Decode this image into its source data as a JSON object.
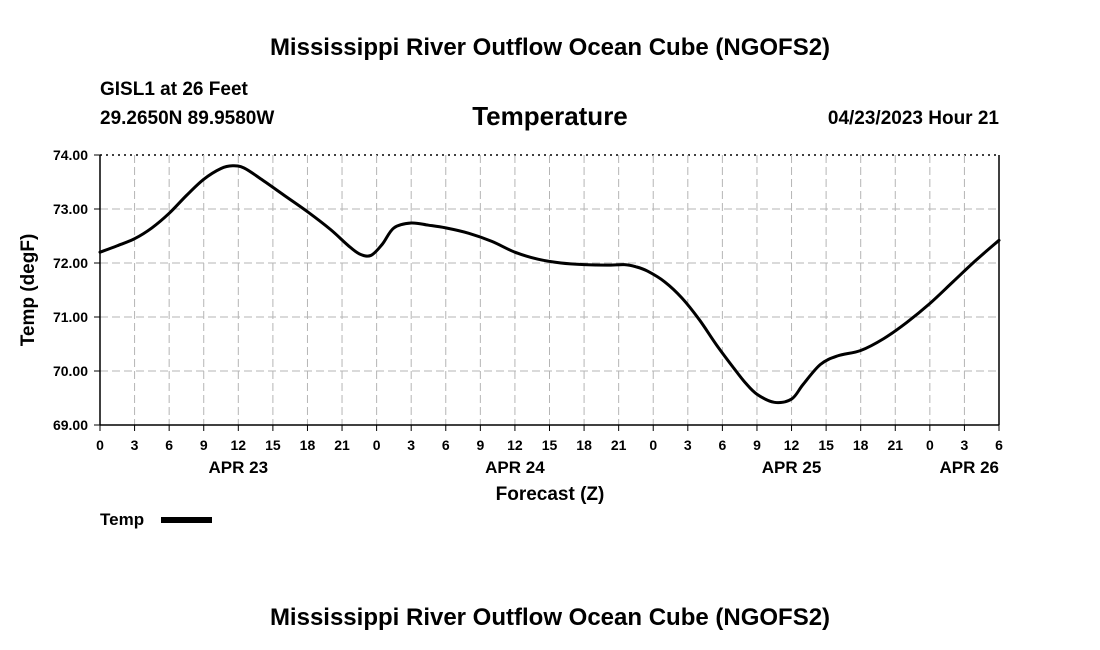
{
  "page_title": "Mississippi River Outflow Ocean Cube (NGOFS2)",
  "footer_title": "Mississippi River Outflow Ocean Cube (NGOFS2)",
  "station_label": "GISL1 at 26 Feet",
  "coordinates": "29.2650N  89.9580W",
  "timestamp": "04/23/2023 Hour 21",
  "chart_data": {
    "type": "line",
    "title": "Temperature",
    "xlabel": "Forecast (Z)",
    "ylabel": "Temp (degF)",
    "ylim": [
      69.0,
      74.0
    ],
    "y_ticks": [
      "69.00",
      "70.00",
      "71.00",
      "72.00",
      "73.00",
      "74.00"
    ],
    "xlim_hours": [
      0,
      78
    ],
    "x_tick_labels": [
      "0",
      "3",
      "6",
      "9",
      "12",
      "15",
      "18",
      "21",
      "0",
      "3",
      "6",
      "9",
      "12",
      "15",
      "18",
      "21",
      "0",
      "3",
      "6",
      "9",
      "12",
      "15",
      "18",
      "21",
      "0",
      "3",
      "6"
    ],
    "date_labels": [
      {
        "label": "APR 23",
        "hour": 12
      },
      {
        "label": "APR 24",
        "hour": 36
      },
      {
        "label": "APR 25",
        "hour": 60
      },
      {
        "label": "APR 26",
        "hour": 72
      }
    ],
    "grid": true,
    "legend": [
      {
        "name": "Temp",
        "color": "#000000"
      }
    ],
    "series": [
      {
        "name": "Temp",
        "color": "#000000",
        "x": [
          0,
          1.5,
          3,
          4.5,
          6,
          7.5,
          9,
          10.5,
          11.5,
          12.5,
          14,
          16,
          18,
          20,
          21.5,
          22.5,
          23.5,
          24.5,
          25.5,
          27,
          28.5,
          30,
          32,
          34,
          36,
          38,
          40,
          42,
          44,
          45.5,
          46.5,
          47.5,
          49,
          50.5,
          52,
          53.5,
          55,
          56,
          57,
          58.5,
          60,
          61,
          62.5,
          64,
          66,
          68,
          70,
          72,
          74,
          76,
          78
        ],
        "y": [
          72.2,
          72.32,
          72.45,
          72.65,
          72.92,
          73.25,
          73.55,
          73.75,
          73.8,
          73.76,
          73.55,
          73.25,
          72.95,
          72.62,
          72.33,
          72.17,
          72.14,
          72.35,
          72.65,
          72.74,
          72.7,
          72.65,
          72.55,
          72.4,
          72.2,
          72.07,
          72.0,
          71.97,
          71.96,
          71.97,
          71.93,
          71.85,
          71.65,
          71.35,
          70.95,
          70.48,
          70.05,
          69.78,
          69.57,
          69.42,
          69.48,
          69.75,
          70.12,
          70.28,
          70.38,
          70.6,
          70.9,
          71.25,
          71.65,
          72.05,
          72.42
        ]
      }
    ]
  }
}
